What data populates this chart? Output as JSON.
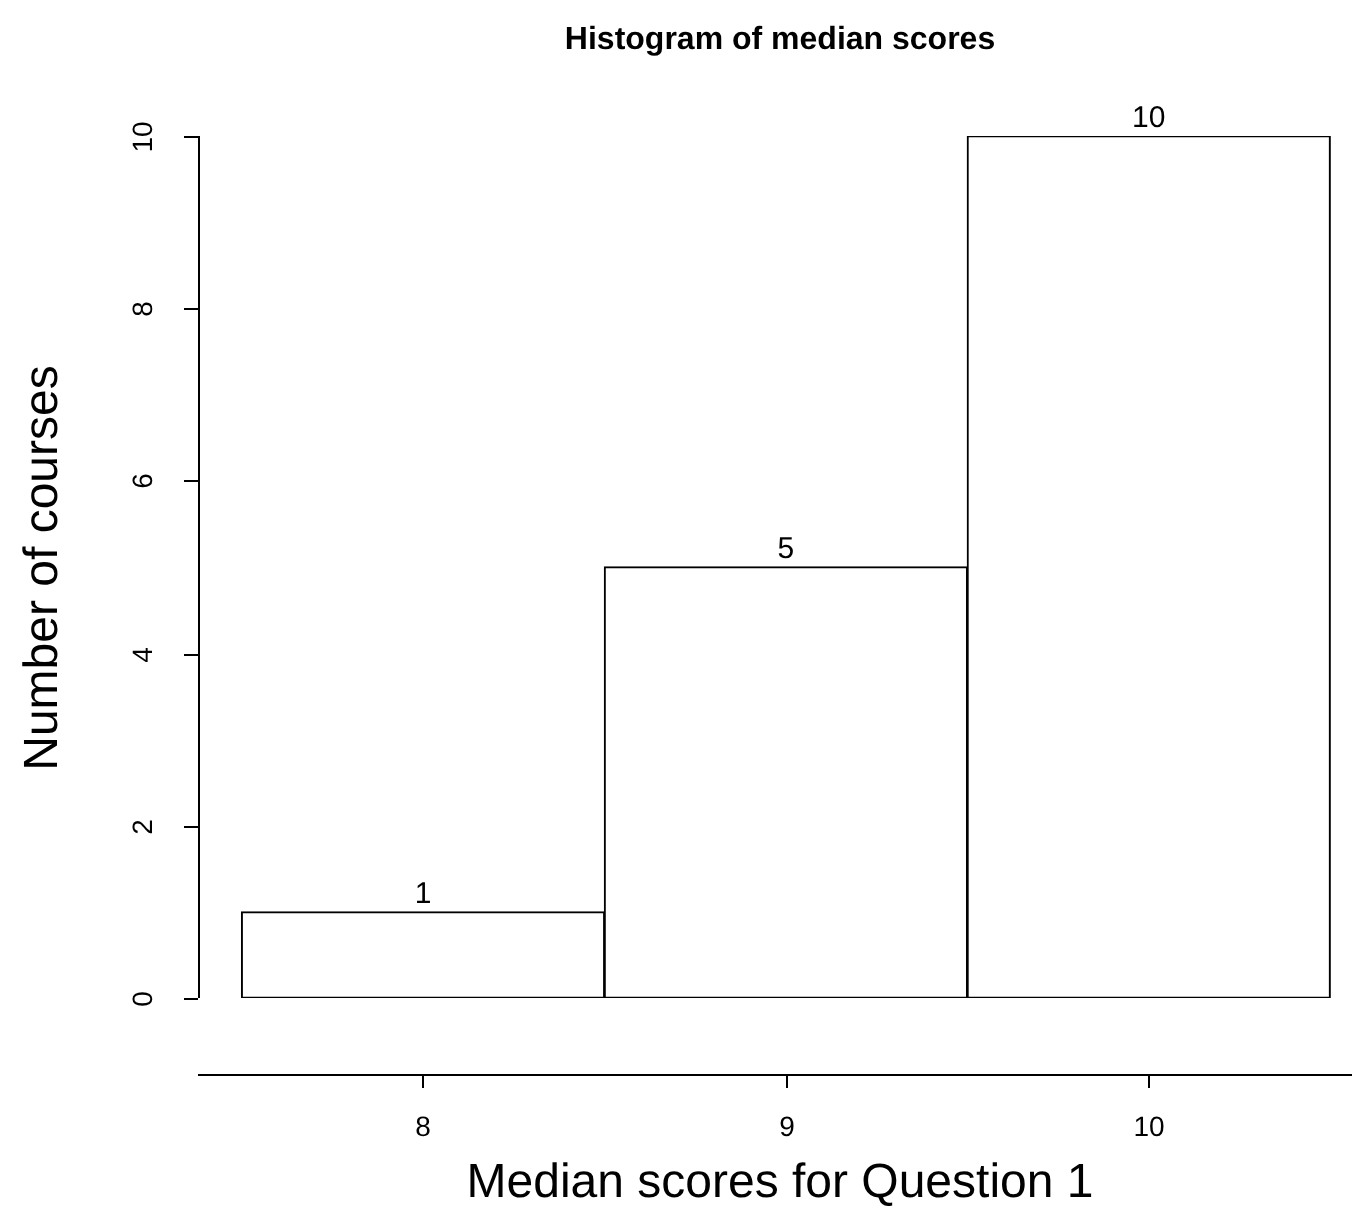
{
  "chart_data": {
    "type": "histogram",
    "title": "Histogram of median scores",
    "xlabel": "Median scores for Question 1",
    "ylabel": "Number of courses",
    "bins": [
      7.5,
      8.5,
      9.5,
      10.5
    ],
    "values": [
      1,
      5,
      10
    ],
    "color": "#ffffff",
    "xlim": [
      7.38,
      10.56
    ],
    "xticks": [
      8,
      9,
      10
    ],
    "ylim": [
      0,
      10
    ],
    "yticks": [
      0,
      2,
      4,
      6,
      8,
      10
    ],
    "data_labels": true,
    "grid": false,
    "legend": false
  }
}
